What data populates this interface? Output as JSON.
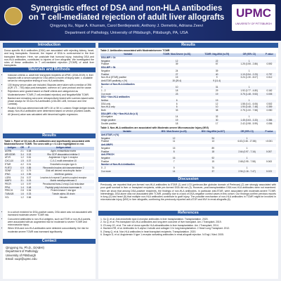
{
  "header": {
    "title": "Synergistic effect of DSA and non-HLA antibodies on T cell-mediated rejection of adult liver allografts",
    "authors": "Qingyong Xu, Nigar A. Khurram, Carol Bentlejewski, Anthony J. Demetris, Adriana Zeevi",
    "affiliation": "Department of Pathology, University of Pittsburgh, Pittsburgh, PA, USA",
    "logo": "UPMC",
    "logo_sub": "UNIVERSITY OF PITTSBURGH"
  },
  "intro": {
    "heading": "Introduction",
    "text": "Donor-specific HLA antibodies (DSA) are associated with rejecting kidney, heart, and lung transplants. However, the impact of DSA is controversial in the liver transplant literature. Here, we postulate that humoral injury, including DSA and non-HLA antibodies, contributes to injuries of liver allografts. We investigated the roles of these antibodies in T cell-mediated rejection (TCMR) of adult liver transplants."
  },
  "methods": {
    "heading": "Materials and Methods",
    "bullets": [
      "Inclusion criteria: a. adult liver transplant recipients at UPMC (2016-2019); b. liver biopsies with a serum sample for DSA within a month of biopsy date; c. available serum for retrospective testing of non-HLA antibodies.",
      "130 biopsy serum pairs are included. Biopsies were taken with a median of 396 (IQR 171 - 753) days post-transplant, common at 1 year protocol and for cause.",
      "Rejections were graded based on Banff criteria and categorized as Moderate/severe TCMR (T cell-mediated rejection) and Negative/Mild TCMR.",
      "Banked and remaining sera were retrospectively tested with Luminex-based solid-phase assays for 33 non-HLA antibodies (LSA-MIC-A/B, Immucor and One Lambda).",
      "Positive DSA was determined with MFI>1K or 5K in Luminex Single Antigen beads assay. Non-HLA antibodies were determined based on vendor provided cutoffs.",
      "All (known) value was calculated with binominal logistic regression."
    ]
  },
  "results_left": {
    "heading": "Results",
    "table1": {
      "caption": "Table 1. Panel of 33 non-HLA antibodies and significantly associated with Moderate/Severe TCMR. The ones with p < 0.1 are highlighted in red.",
      "columns": [
        "Antigen",
        "OR",
        "P",
        "Antigen detail"
      ],
      "rows": [
        [
          "AGRN",
          "2.1",
          "0.08",
          "Agrin, extracellular matrix"
        ],
        [
          "ARHGDIB",
          "3.4",
          "0.02",
          "Rho GDP-dissociation inhibitor 2"
        ],
        [
          "AT1R",
          "1.2",
          "0.61",
          "Angiotensin II type 1 receptor"
        ],
        [
          "CXCL10",
          "1.5",
          "0.37",
          "C-X-C motif chemokine 10"
        ],
        [
          "ETAR",
          "4.2",
          "0.01",
          "Endothelin receptor type A"
        ],
        [
          "FLRT2",
          "0.9",
          "0.85",
          "Fibronectin leucine-rich transmembrane 2"
        ],
        [
          "GDNF",
          "1.1",
          "0.79",
          "Glial cell derived neurotrophic factor"
        ],
        [
          "IFNG",
          "1.3",
          "0.55",
          "Interferon gamma"
        ],
        [
          "LGR4",
          "2.6",
          "0.07",
          "Leucine-rich repeat G protein-coupled receptor"
        ],
        [
          "MMP3",
          "3.1",
          "0.03",
          "Matrix metalloproteinase-3"
        ],
        [
          "PECR",
          "1.0",
          "0.97",
          "Peroxisomal trans-2-enoyl-CoA reductase"
        ],
        [
          "PPIA",
          "1.4",
          "0.48",
          "Peptidyl-prolyl cis-trans isomerase A"
        ],
        [
          "PRKCH",
          "2.8",
          "0.06",
          "Protein kinase C eta type"
        ],
        [
          "TUBA1B",
          "1.6",
          "0.33",
          "Tubulin alpha-1B chain"
        ],
        [
          "VCL",
          "1.2",
          "0.66",
          "Vinculin"
        ]
      ]
    },
    "bullets": [
      "In a cohort enriched for DSA-positive cases, DSA alone was not associated with increased moderate-severe TCMR risk.",
      "Concurrent antibodies to non-HLA antigens, such as ETAR or non-HLA panels, were associated with an augmented risk for moderate to severe TCMR and microvascular injury.",
      "When DSA and non-HLA antibodies were detected concomitantly, the risk for moderate-severe TCMR was increased significantly."
    ]
  },
  "contact": {
    "heading": "Contact",
    "lines": [
      "Qingyong Xu, Ph.D., D(ABHI)",
      "Department of Pathology",
      "University of Pittsburgh",
      "Email: xuq2@upmc.edu"
    ]
  },
  "results_right": {
    "heading": "Results",
    "table2": {
      "caption": "Table 2. Antibodies associated with Moderate/severe TCMR",
      "columns": [
        "Variable",
        "TCMR: Mod-Severe (n=51)",
        "TCMR: Neg-Mild (n=79)",
        "OR (95% CI)",
        "P value"
      ],
      "rows": [
        [
          "DSA-MFI > 1k",
          null,
          null,
          null,
          null
        ],
        [
          "Negative",
          "12",
          "22",
          "1",
          null
        ],
        [
          "Positive",
          "39",
          "57",
          "1.25 (0.55 - 2.86)",
          "0.592"
        ],
        [
          "DSA-MFI > 5k",
          null,
          null,
          null,
          null
        ],
        [
          "Negative",
          "24",
          "39",
          "1",
          null
        ],
        [
          "Positive",
          "27",
          "40",
          "1.10 (0.54 - 2.23)",
          "0.797"
        ],
        [
          "Non-HLA (ETAR) positive",
          "15",
          "9",
          "3.24 (1.30 - 8.07)",
          "0.012"
        ],
        [
          "Anti-ETAR positivity, n (%)",
          "15 (29.4)",
          "9 (11.4)",
          null,
          null
        ],
        [
          "Number of Non-HLA Antibodies",
          null,
          null,
          null,
          null
        ],
        [
          "0",
          "10",
          "31",
          "1",
          null
        ],
        [
          "1 - 2",
          "18",
          "29",
          "1.92 (0.77 - 4.80)",
          "0.162"
        ],
        [
          "3 or more",
          "23",
          "19",
          "3.75 (1.48 - 9.53)",
          "0.005"
        ],
        [
          "DSA + Non-HLA antibodies",
          null,
          null,
          null,
          null
        ],
        [
          "Neither",
          "6",
          "19",
          "1",
          null
        ],
        [
          "DSA only",
          "6",
          "12",
          "1.58 (0.41 - 6.06)",
          "0.502"
        ],
        [
          "Non-HLA only",
          "6",
          "10",
          "1.90 (0.48 - 7.48)",
          "0.359"
        ],
        [
          "Both",
          "33",
          "38",
          "2.75 (1.00 - 7.58)",
          "0.050"
        ],
        [
          "DSA (MFI > 5k) + Non-HLA Ab (≥ 3)",
          null,
          null,
          null,
          null
        ],
        [
          "All negative",
          "14",
          "32",
          "1",
          null
        ],
        [
          "Single positive",
          "19",
          "30",
          "1.45 (0.63 - 3.33)",
          "0.386"
        ],
        [
          "Double positive",
          "18",
          "17",
          "2.42 (0.98 - 5.99)",
          "0.056"
        ]
      ]
    },
    "table3": {
      "caption": "Table 3. Non-HLA antibodies are associated with Moderate-severe Microvascular Injury (MVI)",
      "columns": [
        "Variable",
        "MVI: Mod-Severe (n=23)",
        "MVI: Neg-Mild (n=107)",
        "OR (95% CI)",
        "P value"
      ],
      "rows": [
        [
          "Anti-ETAR, n (%)",
          null,
          null,
          null,
          null
        ],
        [
          "Negative",
          "12",
          "94",
          "1",
          null
        ],
        [
          "Positive",
          "11",
          "13",
          "6.63 (2.46 - 17.86)",
          "<0.001"
        ],
        [
          "Anti-MMP3",
          null,
          null,
          null,
          null
        ],
        [
          "Negative",
          "15",
          "89",
          "1",
          null
        ],
        [
          "Positive",
          "8",
          "18",
          "2.64 (0.97 - 7.16)",
          "0.057"
        ],
        [
          "Anti-PRKCH",
          null,
          null,
          null,
          null
        ],
        [
          "Negative",
          "16",
          "92",
          "1",
          null
        ],
        [
          "Positive",
          "7",
          "15",
          "2.68 (0.95 - 7.58)",
          "0.063"
        ],
        [
          "Number of Non-HLA Antibodies",
          null,
          null,
          null,
          null
        ],
        [
          "0 - 2",
          "9",
          "70",
          "1",
          null
        ],
        [
          "3 or more",
          "14",
          "37",
          "2.94 (1.16 - 7.47)",
          "0.023"
        ]
      ]
    },
    "discussion": {
      "heading": "Discussion",
      "text": "Previously, we reported that pre-formed non-HLA antibodies to ETAR (1) and LG3 (perlecan-like globular domain of Perlecan) (2) are strongly associated with poor graft survival in liver or transplant recipients, while pre-formed DSA did not (3). However, post-transplantation DSA non-HLA antibodies were not examined. Here we show that among DSA-positive recipients, the findings of non-HLA antibodies, in particular anti-ETAR, were associated with moderate-severe TCMR. Interestingly, DSA alone was not associated with TCMR, possibly due to a lack of DSA-negative control cases in this cohort. Our findings confirm previous reports in lung (4) and heart (5) that multiple non-HLA antibodies contribute to graft injury. The possible mechanism of non-HLA antibodies in TCMR might be involved in microvascular injury (MVI) in liver allografts, confirming the previously reported anti-AT1R and MVI in renal allografts (6)."
    },
    "references": {
      "heading": "References",
      "items": [
        "1. Xu Q, et al. Anti-endothelin type A receptor antibodies in liver transplantation. Transplantation. 2020.",
        "2. Xu Q, et al. Pre-transplant non-HLA antibodies and long-term outcome of liver transplant. Am J Transplant. 2019.",
        "3. O'Leary JG, et al. The role of donor-specific HLA alloantibodies in liver transplantation. Am J Transplant. 2014.",
        "4. Hachem RR, et al. Antibodies to K-alpha 1 tubulin and collagen V in lung transplantation. J Heart Lung Transplant. 2012.",
        "5. Zhang Q, et al. Non-HLA antibodies in heart transplant recipients. Transplantation. 2020.",
        "6. Dragun D, et al. Angiotensin II type 1-receptor activating antibodies in renal-allograft rejection. N Engl J Med. 2005."
      ]
    }
  }
}
